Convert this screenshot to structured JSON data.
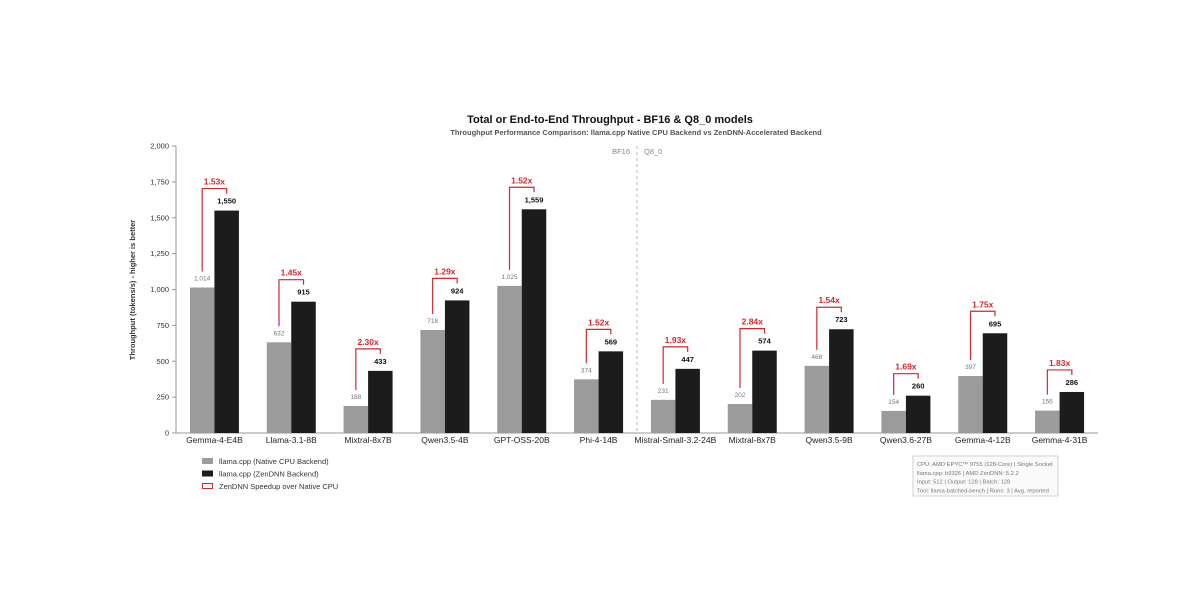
{
  "chart_data": {
    "type": "bar",
    "title": "Total or End-to-End Throughput - BF16 & Q8_0 models",
    "subtitle": "Throughput Performance Comparison: llama.cpp Native CPU Backend vs ZenDNN-Accelerated Backend",
    "ylabel": "Throughput (tokens/s) - higher is better",
    "xlabel": "",
    "ylim": [
      0,
      2000
    ],
    "yticks": [
      0,
      250,
      500,
      750,
      1000,
      1250,
      1500,
      1750,
      2000
    ],
    "ytick_labels": [
      "0",
      "250",
      "500",
      "750",
      "1,000",
      "1,250",
      "1,500",
      "1,750",
      "2,000"
    ],
    "grid": false,
    "legend_position": "bottom-left",
    "categories": [
      "Gemma-4-E4B",
      "Llama-3.1-8B",
      "Mixtral-8x7B",
      "Qwen3.5-4B",
      "GPT-OSS-20B",
      "Phi-4-14B",
      "Mistral-Small-3.2-24B",
      "Mixtral-8x7B",
      "Qwen3.5-9B",
      "Qwen3.6-27B",
      "Gemma-4-12B",
      "Gemma-4-31B"
    ],
    "series": [
      {
        "name": "llama.cpp (Native CPU Backend)",
        "color": "#9b9b9b",
        "values": [
          1014,
          632,
          188,
          718,
          1025,
          374,
          231,
          202,
          468,
          154,
          397,
          156
        ],
        "labels": [
          "1,014",
          "632",
          "188",
          "718",
          "1,025",
          "374",
          "231",
          "202",
          "468",
          "154",
          "397",
          "156"
        ]
      },
      {
        "name": "llama.cpp (ZenDNN Backend)",
        "color": "#1c1c1c",
        "values": [
          1550,
          915,
          433,
          924,
          1559,
          569,
          447,
          574,
          723,
          260,
          695,
          286
        ],
        "labels": [
          "1,550",
          "915",
          "433",
          "924",
          "1,559",
          "569",
          "447",
          "574",
          "723",
          "260",
          "695",
          "286"
        ]
      }
    ],
    "speedup": {
      "name": "ZenDNN Speedup over Native CPU",
      "color": "#d6262d",
      "labels": [
        "1.53x",
        "1.45x",
        "2.30x",
        "1.29x",
        "1.52x",
        "1.52x",
        "1.93x",
        "2.84x",
        "1.54x",
        "1.69x",
        "1.75x",
        "1.83x"
      ]
    },
    "sections": [
      {
        "label": "BF16",
        "start_index": 0,
        "end_index": 5
      },
      {
        "label": "Q8_0",
        "start_index": 6,
        "end_index": 11
      }
    ],
    "info_box": [
      "CPU: AMD EPYC™ 9755 (128-Core) | Single Socket",
      "llama.cpp: b9326  |  AMD ZenDNN: 5.2.2",
      "Input: 512  |  Output: 128  |  Batch: 128",
      "Tool: llama-batched-bench  |  Runs: 3  |  Avg. reported"
    ]
  }
}
